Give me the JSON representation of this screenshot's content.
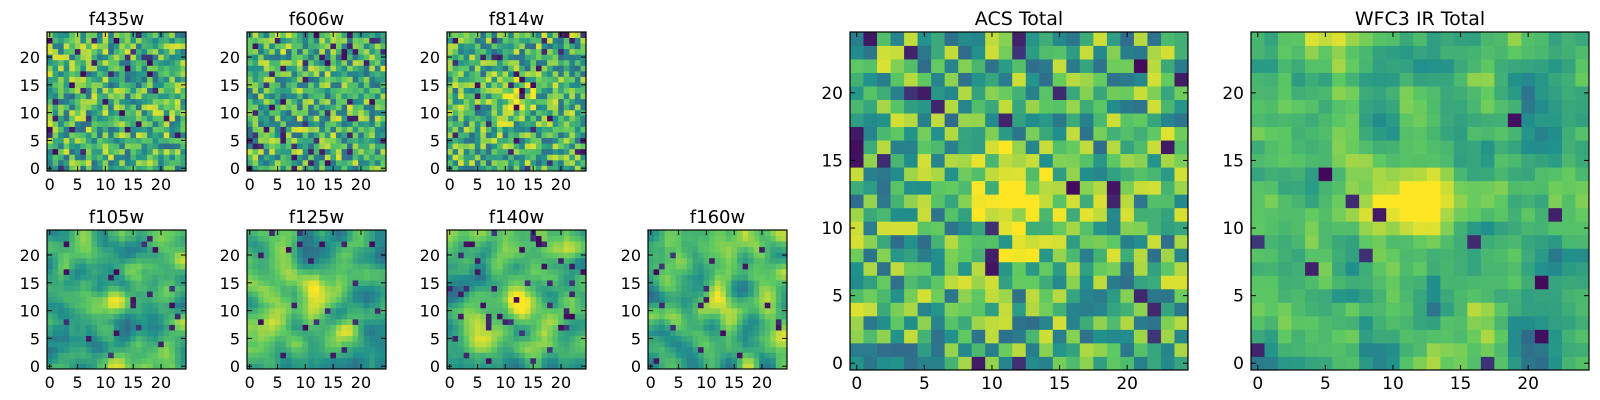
{
  "figure": {
    "colormap": "viridis",
    "colormap_stops": [
      "#440154",
      "#3b528b",
      "#21918c",
      "#5ec962",
      "#fde725"
    ]
  },
  "chart_data": [
    {
      "type": "heatmap",
      "title": "f435w",
      "grid": false,
      "xlim": [
        0,
        24
      ],
      "ylim": [
        0,
        24
      ],
      "xticks": [
        "0",
        "5",
        "10",
        "15",
        "20"
      ],
      "yticks": [
        "0",
        "5",
        "10",
        "15",
        "20"
      ],
      "seed": 11,
      "smooth": 0,
      "bright_center": 0.0,
      "dark_spots": 0.06
    },
    {
      "type": "heatmap",
      "title": "f606w",
      "grid": false,
      "xlim": [
        0,
        24
      ],
      "ylim": [
        0,
        24
      ],
      "xticks": [
        "0",
        "5",
        "10",
        "15",
        "20"
      ],
      "yticks": [
        "0",
        "5",
        "10",
        "15",
        "20"
      ],
      "seed": 23,
      "smooth": 0,
      "bright_center": 0.0,
      "dark_spots": 0.07
    },
    {
      "type": "heatmap",
      "title": "f814w",
      "grid": false,
      "xlim": [
        0,
        24
      ],
      "ylim": [
        0,
        24
      ],
      "xticks": [
        "0",
        "5",
        "10",
        "15",
        "20"
      ],
      "yticks": [
        "0",
        "5",
        "10",
        "15",
        "20"
      ],
      "seed": 37,
      "smooth": 0,
      "bright_center": 0.35,
      "dark_spots": 0.06
    },
    {
      "type": "heatmap",
      "title": "f105w",
      "grid": false,
      "xlim": [
        0,
        24
      ],
      "ylim": [
        0,
        24
      ],
      "xticks": [
        "0",
        "5",
        "10",
        "15",
        "20"
      ],
      "yticks": [
        "0",
        "5",
        "10",
        "15",
        "20"
      ],
      "seed": 41,
      "smooth": 2,
      "bright_center": 0.3,
      "dark_spots": 0.03
    },
    {
      "type": "heatmap",
      "title": "f125w",
      "grid": false,
      "xlim": [
        0,
        24
      ],
      "ylim": [
        0,
        24
      ],
      "xticks": [
        "0",
        "5",
        "10",
        "15",
        "20"
      ],
      "yticks": [
        "0",
        "5",
        "10",
        "15",
        "20"
      ],
      "seed": 53,
      "smooth": 2,
      "bright_center": 0.3,
      "dark_spots": 0.04
    },
    {
      "type": "heatmap",
      "title": "f140w",
      "grid": false,
      "xlim": [
        0,
        24
      ],
      "ylim": [
        0,
        24
      ],
      "xticks": [
        "0",
        "5",
        "10",
        "15",
        "20"
      ],
      "yticks": [
        "0",
        "5",
        "10",
        "15",
        "20"
      ],
      "seed": 67,
      "smooth": 2,
      "bright_center": 0.3,
      "dark_spots": 0.05
    },
    {
      "type": "heatmap",
      "title": "f160w",
      "grid": false,
      "xlim": [
        0,
        24
      ],
      "ylim": [
        0,
        24
      ],
      "xticks": [
        "0",
        "5",
        "10",
        "15",
        "20"
      ],
      "yticks": [
        "0",
        "5",
        "10",
        "15",
        "20"
      ],
      "seed": 79,
      "smooth": 2,
      "bright_center": 0.3,
      "dark_spots": 0.04
    },
    {
      "type": "heatmap",
      "title": "ACS Total",
      "grid": false,
      "xlim": [
        0,
        24
      ],
      "ylim": [
        0,
        24
      ],
      "xticks": [
        "0",
        "5",
        "10",
        "15",
        "20"
      ],
      "yticks": [
        "0",
        "5",
        "10",
        "15",
        "20"
      ],
      "seed": 97,
      "smooth": 0,
      "bright_center": 0.45,
      "dark_spots": 0.05
    },
    {
      "type": "heatmap",
      "title": "WFC3 IR Total",
      "grid": false,
      "xlim": [
        0,
        24
      ],
      "ylim": [
        0,
        24
      ],
      "xticks": [
        "0",
        "5",
        "10",
        "15",
        "20"
      ],
      "yticks": [
        "0",
        "5",
        "10",
        "15",
        "20"
      ],
      "seed": 131,
      "smooth": 1,
      "bright_center": 0.6,
      "dark_spots": 0.03
    }
  ]
}
